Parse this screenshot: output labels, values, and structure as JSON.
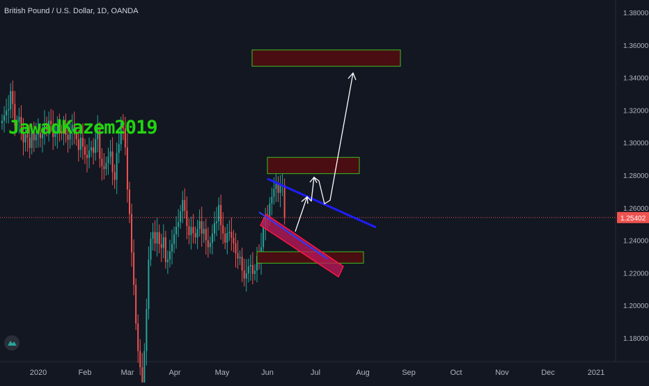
{
  "header": {
    "title": "British Pound / U.S. Dollar, 1D, OANDA"
  },
  "watermark": "JawadKazem2019",
  "colors": {
    "background": "#131722",
    "up_candle": "#26a69a",
    "down_candle": "#ef5350",
    "trendline": "#1e1eff",
    "zone_fill": "#4a0d12",
    "zone_border": "#3fbf1f",
    "channel": "#c2185b",
    "price_line": "#ef5350",
    "arrows": "#ffffff"
  },
  "icons": {
    "logo": "tradingview-logo-icon"
  },
  "chart_data": {
    "type": "candlestick",
    "symbol": "GBPUSD",
    "interval": "1D",
    "ylim": [
      1.165,
      1.395
    ],
    "y_ticks": [
      "1.38000",
      "1.36000",
      "1.34000",
      "1.32000",
      "1.30000",
      "1.28000",
      "1.26000",
      "1.24000",
      "1.22000",
      "1.20000",
      "1.18000"
    ],
    "x_ticks": [
      "2020",
      "Feb",
      "Mar",
      "Apr",
      "May",
      "Jun",
      "Jul",
      "Aug",
      "Sep",
      "Oct",
      "Nov",
      "Dec",
      "2021"
    ],
    "current_price": "1.25402",
    "candles_close": [
      1.3135,
      1.3168,
      1.3198,
      1.3205,
      1.3318,
      1.3238,
      1.3105,
      1.3128,
      1.3158,
      1.3063,
      1.3002,
      1.3051,
      1.3032,
      1.2968,
      1.3072,
      1.3015,
      1.3049,
      1.3062,
      1.3028,
      1.3051,
      1.312,
      1.3079,
      1.3135,
      1.3112,
      1.3036,
      1.3052,
      1.3098,
      1.3071,
      1.3056,
      1.3108,
      1.3048,
      1.3019,
      1.3072,
      1.3111,
      1.3054,
      1.3021,
      1.2956,
      1.3031,
      1.2976,
      1.2926,
      1.2906,
      1.2952,
      1.2972,
      1.2938,
      1.3021,
      1.3081,
      1.2902,
      1.2856,
      1.2838,
      1.2875,
      1.2914,
      1.2946,
      1.2819,
      1.2772,
      1.2938,
      1.2991,
      1.312,
      1.3087,
      1.2971,
      1.2712,
      1.2562,
      1.2326,
      1.2127,
      1.1889,
      1.172,
      1.162,
      1.1519,
      1.172,
      1.1978,
      1.2282,
      1.241,
      1.2451,
      1.2381,
      1.245,
      1.2377,
      1.2354,
      1.2419,
      1.2266,
      1.2282,
      1.2332,
      1.2378,
      1.2437,
      1.2484,
      1.2512,
      1.2578,
      1.2648,
      1.2582,
      1.2488,
      1.2432,
      1.2482,
      1.2445,
      1.2418,
      1.2471,
      1.2518,
      1.2441,
      1.247,
      1.2401,
      1.2358,
      1.2385,
      1.2442,
      1.2506,
      1.2517,
      1.2617,
      1.2493,
      1.2442,
      1.2386,
      1.2445,
      1.2452,
      1.2416,
      1.2382,
      1.2321,
      1.2289,
      1.2299,
      1.2215,
      1.2165,
      1.2197,
      1.224,
      1.2248,
      1.2194,
      1.2214,
      1.2304,
      1.2269,
      1.2358,
      1.2488,
      1.2536,
      1.2526,
      1.2626,
      1.2668,
      1.2715,
      1.2746,
      1.2692,
      1.2736,
      1.274,
      1.2537
    ],
    "channel_zone": {
      "label": "",
      "from": "2020-06-01",
      "to": "2020-07-20"
    },
    "zones": [
      {
        "top": 1.357,
        "bottom": 1.347
      },
      {
        "top": 1.291,
        "bottom": 1.281
      },
      {
        "top": 1.233,
        "bottom": 1.226
      }
    ]
  }
}
